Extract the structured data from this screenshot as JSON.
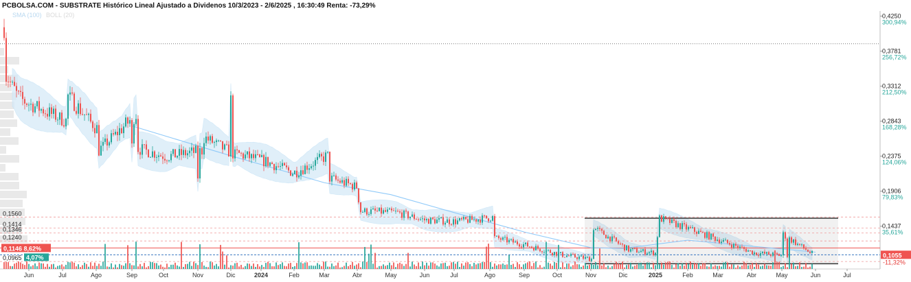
{
  "header": {
    "title": "PCBOLSA.COM - SUBSTRATE Histórico Lineal Ajustado a Dividenos 10/3/2023 - 2/6/2025 , 16:30:49 Renta: -73,29%",
    "legend_sma": "SMA (100)",
    "legend_boll": "BOLL (20)"
  },
  "colors": {
    "up": "#26a69a",
    "down": "#ef5350",
    "band": "#d6eaf8",
    "sma": "#90caf9",
    "price_badge": "#ef5350",
    "pct_badge": "#26a69a"
  },
  "chart_data": {
    "type": "candlestick",
    "ylim": [
      0.0865,
      0.43
    ],
    "right_axis": {
      "prices": [
        "0,4250",
        "0,3781",
        "0,3312",
        "0,2843",
        "0,2375",
        "0,1906",
        "0,1437"
      ],
      "percents": [
        "300,94%",
        "256,72%",
        "212,50%",
        "168,28%",
        "124,06%",
        "79,83%",
        "35,61%"
      ],
      "last_price": "0,1055",
      "last_percent": "-11,32%"
    },
    "x_ticks": [
      "Jun",
      "Jul",
      "Ago",
      "Sep",
      "Oct",
      "Nov",
      "Dic",
      "2024",
      "Feb",
      "Mar",
      "Abr",
      "May",
      "Jun",
      "Jul",
      "Ago",
      "Sep",
      "Oct",
      "Nov",
      "Dic",
      "2025",
      "Feb",
      "Mar",
      "Abr",
      "May",
      "Jun",
      "Jul"
    ],
    "left_levels": [
      {
        "label": "0,1560",
        "value": 0.156
      },
      {
        "label": "0,1414",
        "value": 0.1414
      },
      {
        "label": "0,1346",
        "value": 0.1346
      },
      {
        "label": "0,1240",
        "value": 0.124
      },
      {
        "label": "0,0965",
        "value": 0.0965
      }
    ],
    "badges": {
      "price_value": 0.1146,
      "price_label": "0,1146",
      "price_pct": "8,62%",
      "green_label": "4,07%"
    },
    "dotted_reference": 0.388,
    "range_box": {
      "start": "Nov 2024",
      "end": "Jun 2025",
      "top": 0.1545,
      "bottom": 0.0935
    },
    "sma_anchors": [
      {
        "x": "Sep 2023",
        "y": 0.278
      },
      {
        "x": "Dic 2023",
        "y": 0.238
      },
      {
        "x": "Mar 2024",
        "y": 0.202
      },
      {
        "x": "May 2024",
        "y": 0.186
      },
      {
        "x": "Jul 2024",
        "y": 0.162
      },
      {
        "x": "Sep 2024",
        "y": 0.136
      },
      {
        "x": "Nov 2024",
        "y": 0.115
      },
      {
        "x": "Dic 2024",
        "y": 0.114
      },
      {
        "x": "Feb 2025",
        "y": 0.125
      },
      {
        "x": "Abr 2025",
        "y": 0.117
      },
      {
        "x": "Jun 2025",
        "y": 0.109
      }
    ],
    "price_anchors": [
      {
        "x": "Mar 2023",
        "y": 0.41
      },
      {
        "x": "Abr 2023",
        "y": 0.35
      },
      {
        "x": "May 2023",
        "y": 0.315
      },
      {
        "x": "Jun 2023",
        "y": 0.308
      },
      {
        "x": "Jul 2023",
        "y": 0.285
      },
      {
        "x": "Jul 2023",
        "y": 0.318
      },
      {
        "x": "Ago 2023",
        "y": 0.275
      },
      {
        "x": "Ago 2023",
        "y": 0.245
      },
      {
        "x": "Sep 2023",
        "y": 0.295
      },
      {
        "x": "Sep 2023",
        "y": 0.25
      },
      {
        "x": "Oct 2023",
        "y": 0.237
      },
      {
        "x": "Nov 2023",
        "y": 0.245
      },
      {
        "x": "Nov 2023",
        "y": 0.21
      },
      {
        "x": "Nov 2023",
        "y": 0.265
      },
      {
        "x": "Dic 2023",
        "y": 0.238
      },
      {
        "x": "Dic 2023",
        "y": 0.312
      },
      {
        "x": "Dic 2023",
        "y": 0.242
      },
      {
        "x": "Ene 2024",
        "y": 0.23
      },
      {
        "x": "Feb 2024",
        "y": 0.215
      },
      {
        "x": "Mar 2024",
        "y": 0.238
      },
      {
        "x": "Mar 2024",
        "y": 0.208
      },
      {
        "x": "Abr 2024",
        "y": 0.196
      },
      {
        "x": "Abr 2024",
        "y": 0.164
      },
      {
        "x": "May 2024",
        "y": 0.162
      },
      {
        "x": "Jun 2024",
        "y": 0.152
      },
      {
        "x": "Jul 2024",
        "y": 0.15
      },
      {
        "x": "Ago 2024",
        "y": 0.156
      },
      {
        "x": "Ago 2024",
        "y": 0.13
      },
      {
        "x": "Sep 2024",
        "y": 0.118
      },
      {
        "x": "Oct 2024",
        "y": 0.105
      },
      {
        "x": "Nov 2024",
        "y": 0.1
      },
      {
        "x": "Nov 2024",
        "y": 0.142
      },
      {
        "x": "Dic 2024",
        "y": 0.112
      },
      {
        "x": "Ene 2025",
        "y": 0.108
      },
      {
        "x": "Ene 2025",
        "y": 0.155
      },
      {
        "x": "Feb 2025",
        "y": 0.138
      },
      {
        "x": "Mar 2025",
        "y": 0.126
      },
      {
        "x": "Abr 2025",
        "y": 0.108
      },
      {
        "x": "May 2025",
        "y": 0.104
      },
      {
        "x": "May 2025",
        "y": 0.134
      },
      {
        "x": "Jun 2025",
        "y": 0.106
      }
    ]
  }
}
